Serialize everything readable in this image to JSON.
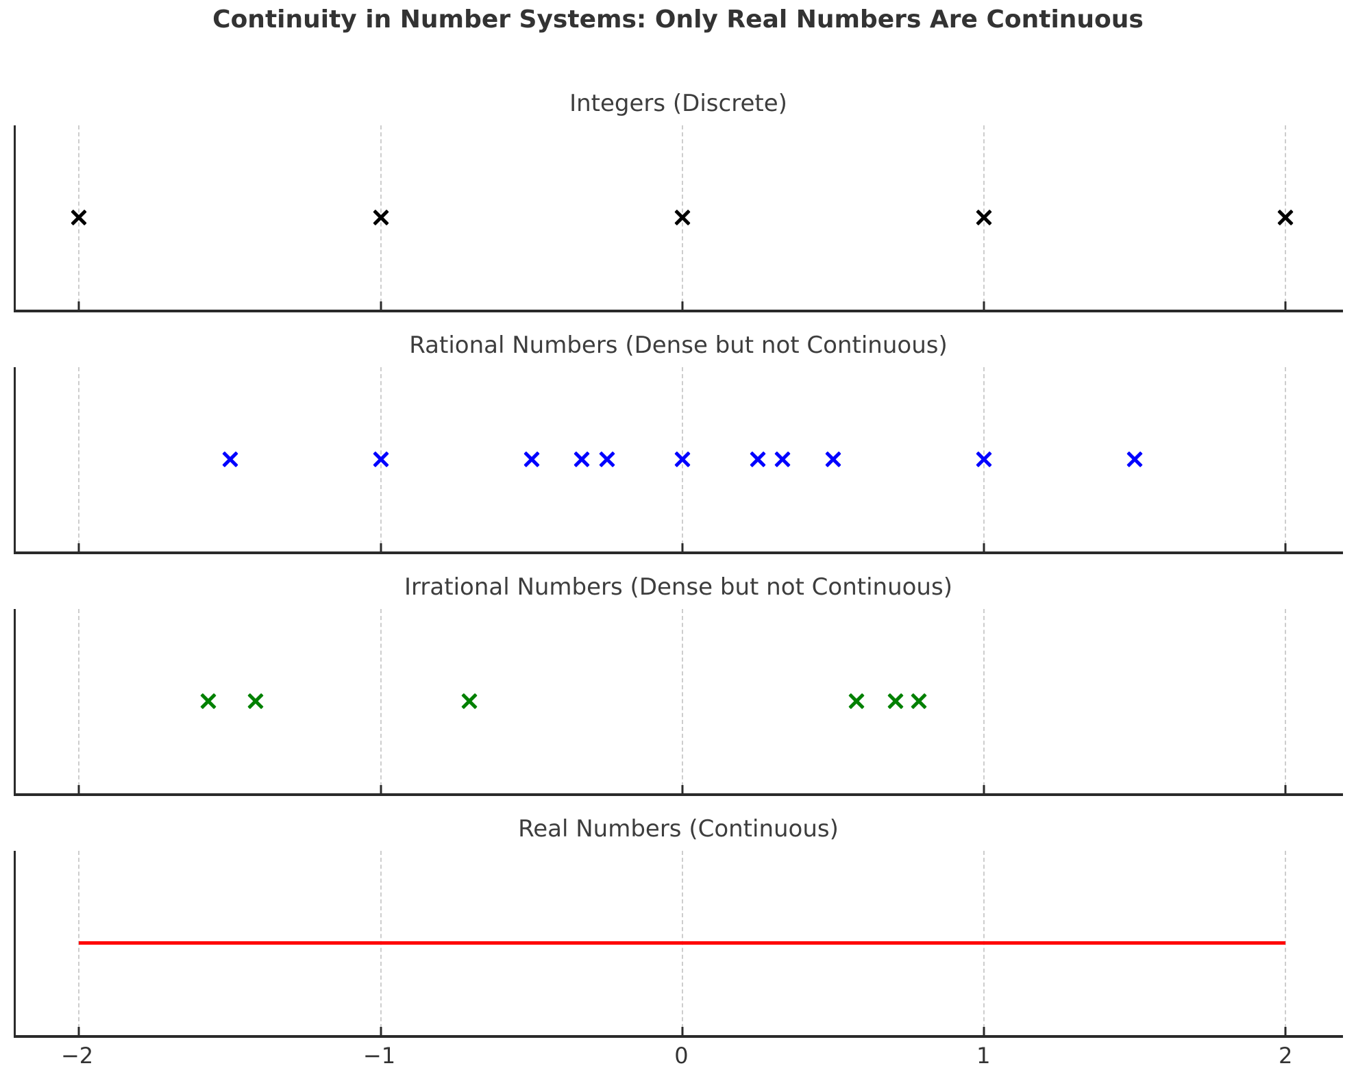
{
  "title": "Continuity in Number Systems: Only Real Numbers Are Continuous",
  "axis": {
    "xlim": [
      -2.21,
      2.19
    ],
    "ticks": [
      -2,
      -1,
      0,
      1,
      2
    ],
    "tick_labels": [
      "−2",
      "−1",
      "0",
      "1",
      "2"
    ],
    "grid": true,
    "grid_color": "#cdcdcd",
    "spine_color": "#2a2a2a",
    "tick_label_color": "#333333"
  },
  "chart_data": [
    {
      "type": "scatter",
      "title": "Integers (Discrete)",
      "marker": "x",
      "color": "#000000",
      "x": [
        -2,
        -1,
        0,
        1,
        2
      ],
      "y": [
        0,
        0,
        0,
        0,
        0
      ]
    },
    {
      "type": "scatter",
      "title": "Rational Numbers (Dense but not Continuous)",
      "marker": "x",
      "color": "#0000ff",
      "x": [
        -1.5,
        -1,
        -0.5,
        -0.333,
        -0.25,
        0,
        0.25,
        0.333,
        0.5,
        1,
        1.5
      ],
      "y": [
        0,
        0,
        0,
        0,
        0,
        0,
        0,
        0,
        0,
        0,
        0
      ]
    },
    {
      "type": "scatter",
      "title": "Irrational Numbers (Dense but not Continuous)",
      "marker": "x",
      "color": "#008000",
      "x": [
        -1.571,
        -1.414,
        -0.707,
        0.577,
        0.707,
        0.785
      ],
      "y": [
        0,
        0,
        0,
        0,
        0,
        0
      ]
    },
    {
      "type": "line",
      "title": "Real Numbers (Continuous)",
      "color": "#ff0000",
      "x": [
        -2,
        2
      ],
      "y": [
        0,
        0
      ]
    }
  ]
}
